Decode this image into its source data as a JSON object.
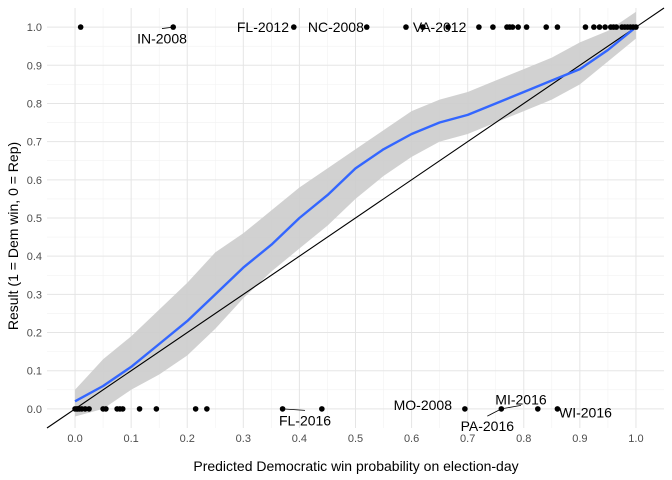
{
  "chart_data": {
    "type": "scatter",
    "xlabel": "Predicted Democratic win probability on election-day",
    "ylabel": "Result (1 = Dem win, 0 = Rep)",
    "xlim": [
      -0.05,
      1.05
    ],
    "ylim": [
      -0.05,
      1.05
    ],
    "xticks": [
      0.0,
      0.1,
      0.2,
      0.3,
      0.4,
      0.5,
      0.6,
      0.7,
      0.8,
      0.9,
      1.0
    ],
    "yticks": [
      0.0,
      0.1,
      0.2,
      0.3,
      0.4,
      0.5,
      0.6,
      0.7,
      0.8,
      0.9,
      1.0
    ],
    "grid": true,
    "colors": {
      "smooth": "#3366ff",
      "ribbon": "#cccccc",
      "points": "#000000",
      "identity": "#000000",
      "grid_major": "#e5e5e5",
      "grid_minor": "#f2f2f2"
    },
    "points_y1": [
      0.01,
      0.175,
      0.39,
      0.52,
      0.59,
      0.62,
      0.665,
      0.72,
      0.745,
      0.77,
      0.775,
      0.78,
      0.79,
      0.805,
      0.84,
      0.86,
      0.91,
      0.925,
      0.935,
      0.945,
      0.955,
      0.96,
      0.965,
      0.975,
      0.98,
      0.985,
      0.99,
      0.995,
      1.0
    ],
    "points_y0": [
      0.0,
      0.003,
      0.005,
      0.008,
      0.012,
      0.018,
      0.025,
      0.05,
      0.055,
      0.075,
      0.08,
      0.085,
      0.115,
      0.145,
      0.215,
      0.235,
      0.37,
      0.44,
      0.695,
      0.76,
      0.825,
      0.86
    ],
    "smooth_x": [
      0.0,
      0.05,
      0.1,
      0.15,
      0.2,
      0.25,
      0.3,
      0.35,
      0.4,
      0.45,
      0.5,
      0.55,
      0.6,
      0.65,
      0.7,
      0.75,
      0.8,
      0.85,
      0.9,
      0.95,
      1.0
    ],
    "smooth_y": [
      0.02,
      0.06,
      0.11,
      0.17,
      0.23,
      0.3,
      0.37,
      0.43,
      0.5,
      0.56,
      0.63,
      0.68,
      0.72,
      0.75,
      0.77,
      0.8,
      0.83,
      0.86,
      0.89,
      0.94,
      1.0
    ],
    "smooth_ci_lower": [
      -0.02,
      0.0,
      0.05,
      0.09,
      0.14,
      0.21,
      0.29,
      0.36,
      0.42,
      0.48,
      0.55,
      0.61,
      0.66,
      0.7,
      0.72,
      0.75,
      0.78,
      0.81,
      0.85,
      0.91,
      0.97
    ],
    "smooth_ci_upper": [
      0.05,
      0.13,
      0.19,
      0.26,
      0.33,
      0.41,
      0.46,
      0.52,
      0.58,
      0.63,
      0.68,
      0.73,
      0.78,
      0.81,
      0.83,
      0.86,
      0.89,
      0.92,
      0.96,
      0.99,
      1.04
    ],
    "annotations": [
      {
        "text": "IN-2008",
        "x": 0.155,
        "y": 0.97,
        "px": 0.175,
        "py": 1.0
      },
      {
        "text": "FL-2012",
        "x": 0.335,
        "y": 1.0,
        "px": 0.39,
        "py": 1.0
      },
      {
        "text": "NC-2008",
        "x": 0.465,
        "y": 1.0,
        "px": 0.52,
        "py": 1.0
      },
      {
        "text": "VA-2012",
        "x": 0.65,
        "y": 1.0,
        "px": 0.59,
        "py": 1.0
      },
      {
        "text": "FL-2016",
        "x": 0.41,
        "y": -0.03,
        "px": 0.37,
        "py": 0.0
      },
      {
        "text": "MO-2008",
        "x": 0.62,
        "y": 0.01,
        "px": 0.695,
        "py": 0.0
      },
      {
        "text": "MI-2016",
        "x": 0.795,
        "y": 0.025,
        "px": 0.76,
        "py": 0.0
      },
      {
        "text": "PA-2016",
        "x": 0.735,
        "y": -0.045,
        "px": 0.76,
        "py": 0.0
      },
      {
        "text": "WI-2016",
        "x": 0.91,
        "y": -0.01,
        "px": 0.86,
        "py": 0.0
      }
    ]
  }
}
